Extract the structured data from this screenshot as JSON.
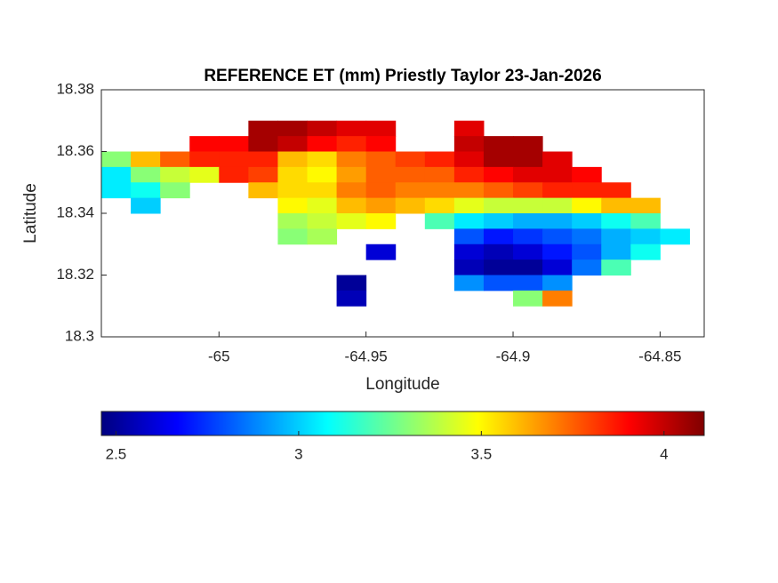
{
  "chart_data": {
    "type": "heatmap",
    "title": "REFERENCE ET (mm) Priestly Taylor 23-Jan-2026",
    "xlabel": "Longitude",
    "ylabel": "Latitude",
    "xlim": [
      -65.04,
      -64.835
    ],
    "ylim": [
      18.3,
      18.38
    ],
    "xticks": [
      -65,
      -64.95,
      -64.9,
      -64.85
    ],
    "yticks": [
      18.3,
      18.32,
      18.34,
      18.36,
      18.38
    ],
    "colormap": "jet",
    "clim": [
      2.46,
      4.11
    ],
    "colorbar_ticks": [
      2.5,
      3,
      3.5,
      4
    ],
    "x": [
      -65.035,
      -65.025,
      -65.015,
      -65.005,
      -64.995,
      -64.985,
      -64.975,
      -64.965,
      -64.955,
      -64.945,
      -64.935,
      -64.925,
      -64.915,
      -64.905,
      -64.895,
      -64.885,
      -64.875,
      -64.865,
      -64.855,
      -64.845
    ],
    "y": [
      18.3675,
      18.3625,
      18.3575,
      18.3525,
      18.3475,
      18.3425,
      18.3375,
      18.3325,
      18.3275,
      18.3225,
      18.3175,
      18.3125
    ],
    "values": [
      [
        null,
        null,
        null,
        null,
        null,
        4.05,
        4.05,
        4.0,
        3.95,
        3.95,
        null,
        null,
        3.95,
        null,
        null,
        null,
        null,
        null,
        null,
        null
      ],
      [
        null,
        null,
        null,
        3.9,
        3.9,
        4.05,
        4.0,
        3.9,
        3.85,
        3.9,
        null,
        null,
        4.0,
        4.05,
        4.05,
        null,
        null,
        null,
        null,
        null
      ],
      [
        3.3,
        3.6,
        3.75,
        3.85,
        3.85,
        3.85,
        3.6,
        3.55,
        3.7,
        3.75,
        3.8,
        3.85,
        3.95,
        4.05,
        4.05,
        3.95,
        null,
        null,
        null,
        null
      ],
      [
        3.05,
        3.3,
        3.4,
        3.45,
        3.85,
        3.8,
        3.55,
        3.5,
        3.65,
        3.75,
        3.75,
        3.75,
        3.85,
        3.9,
        3.95,
        3.95,
        3.9,
        null,
        null,
        null
      ],
      [
        3.05,
        3.1,
        3.3,
        null,
        null,
        3.6,
        3.55,
        3.55,
        3.7,
        3.75,
        3.7,
        3.7,
        3.7,
        3.75,
        3.8,
        3.85,
        3.85,
        3.85,
        null,
        null
      ],
      [
        null,
        3.0,
        null,
        null,
        null,
        null,
        3.5,
        3.45,
        3.6,
        3.65,
        3.6,
        3.55,
        3.45,
        3.4,
        3.4,
        3.4,
        3.5,
        3.6,
        3.6,
        null
      ],
      [
        null,
        null,
        null,
        null,
        null,
        null,
        3.35,
        3.4,
        3.45,
        3.5,
        null,
        3.2,
        3.05,
        3.0,
        2.95,
        2.95,
        3.0,
        3.1,
        3.2,
        null
      ],
      [
        null,
        null,
        null,
        null,
        null,
        null,
        3.3,
        3.35,
        null,
        null,
        null,
        null,
        2.8,
        2.7,
        2.75,
        2.8,
        2.85,
        2.95,
        3.0,
        3.05
      ],
      [
        null,
        null,
        null,
        null,
        null,
        null,
        null,
        null,
        null,
        2.6,
        null,
        null,
        2.6,
        2.55,
        2.6,
        2.7,
        2.8,
        2.95,
        3.1,
        null
      ],
      [
        null,
        null,
        null,
        null,
        null,
        null,
        null,
        null,
        null,
        null,
        null,
        null,
        2.55,
        2.5,
        2.5,
        2.6,
        2.85,
        3.2,
        null,
        null
      ],
      [
        null,
        null,
        null,
        null,
        null,
        null,
        null,
        null,
        2.5,
        null,
        null,
        null,
        2.9,
        2.8,
        2.8,
        2.9,
        null,
        null,
        null,
        null
      ],
      [
        null,
        null,
        null,
        null,
        null,
        null,
        null,
        null,
        2.55,
        null,
        null,
        null,
        null,
        null,
        3.3,
        3.7,
        null,
        null,
        null,
        null
      ]
    ]
  }
}
